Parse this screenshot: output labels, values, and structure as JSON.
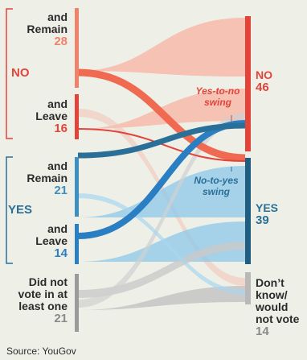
{
  "left_groups": {
    "no": {
      "label": "NO",
      "color": "#e2443a"
    },
    "yes": {
      "label": "YES",
      "color": "#2a6f97"
    }
  },
  "left_nodes": [
    {
      "line1": "and",
      "line2": "Remain",
      "line3": "",
      "value": "28",
      "color": "#f0826b"
    },
    {
      "line1": "and",
      "line2": "Leave",
      "line3": "",
      "value": "16",
      "color": "#e2443a"
    },
    {
      "line1": "and",
      "line2": "Remain",
      "line3": "",
      "value": "21",
      "color": "#3d8fbf"
    },
    {
      "line1": "and",
      "line2": "Leave",
      "line3": "",
      "value": "14",
      "color": "#2a7fc2"
    },
    {
      "line1": "Did not",
      "line2": "vote in at",
      "line3": "least one",
      "value": "21",
      "color": "#9a9a9a"
    }
  ],
  "right_nodes": [
    {
      "line1": "NO",
      "line2": "",
      "line3": "",
      "line4": "",
      "value": "46",
      "color": "#e2443a"
    },
    {
      "line1": "YES",
      "line2": "",
      "line3": "",
      "line4": "",
      "value": "39",
      "color": "#1f5e80"
    },
    {
      "line1": "Don’t",
      "line2": "know/",
      "line3": "would",
      "line4": "not vote",
      "value": "14",
      "color": "#b9b9b9"
    }
  ],
  "annotations": {
    "yes_to_no": [
      "Yes-to-no",
      "swing"
    ],
    "no_to_yes": [
      "No-to-yes",
      "swing"
    ]
  },
  "source": "Source: YouGov"
}
